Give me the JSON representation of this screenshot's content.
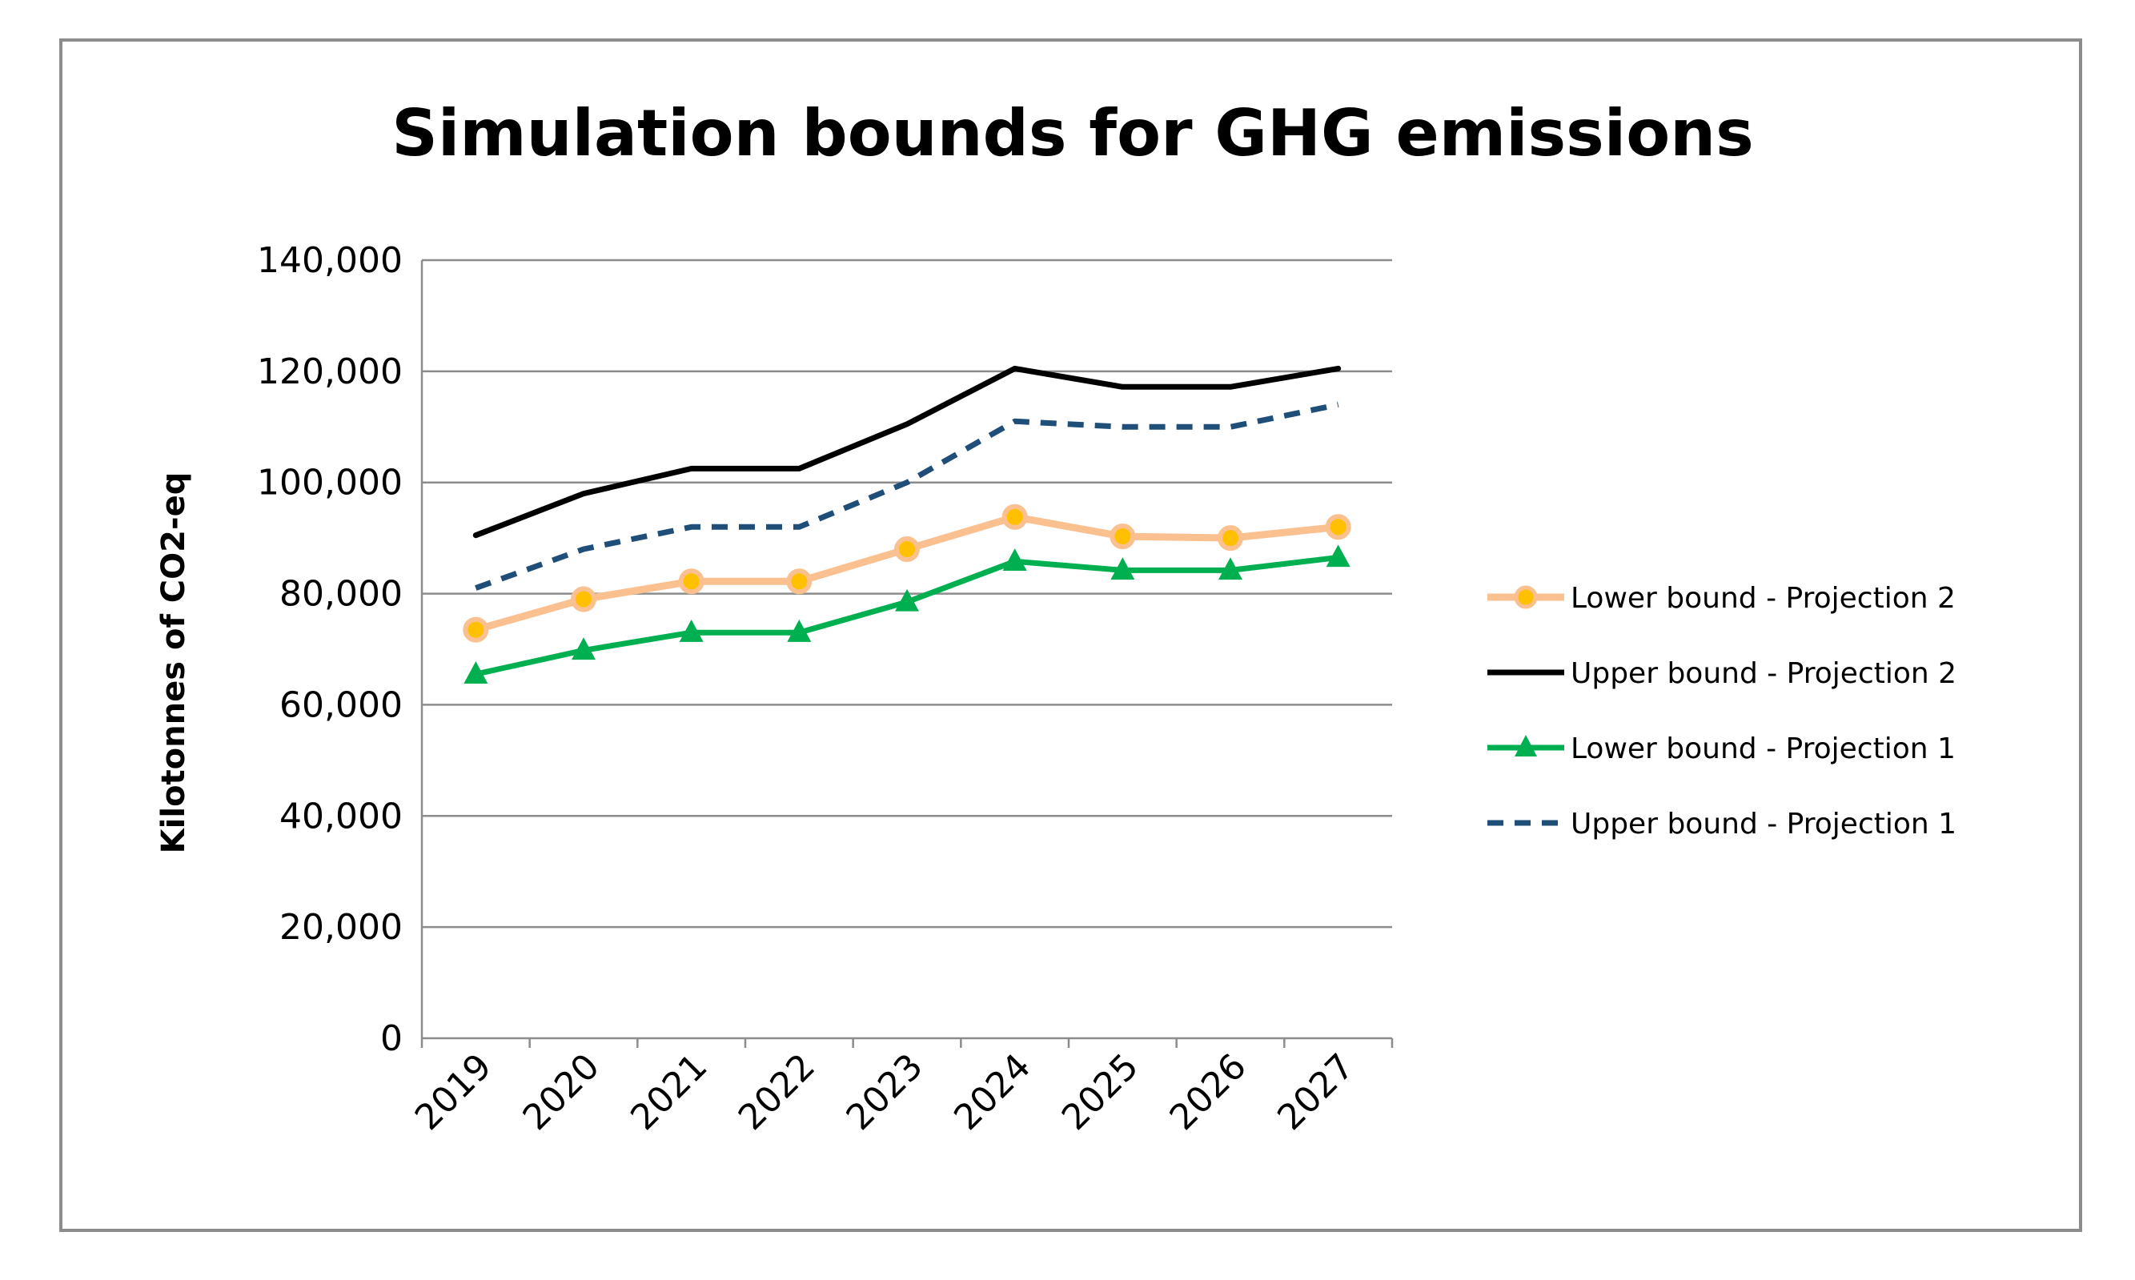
{
  "chart_data": {
    "type": "line",
    "title": "Simulation bounds for GHG emissions",
    "xlabel": "",
    "ylabel": "Kilotonnes of CO2-eq",
    "ylim": [
      0,
      140000
    ],
    "yticks": [
      0,
      20000,
      40000,
      60000,
      80000,
      100000,
      120000,
      140000
    ],
    "ytick_labels": [
      "0",
      "20,000",
      "40,000",
      "60,000",
      "80,000",
      "100,000",
      "120,000",
      "140,000"
    ],
    "categories": [
      "2019",
      "2020",
      "2021",
      "2022",
      "2023",
      "2024",
      "2025",
      "2026",
      "2027"
    ],
    "grid": true,
    "legend_position": "right",
    "series": [
      {
        "name": "Lower bound - Projection 2",
        "values": [
          73500,
          79000,
          82200,
          82200,
          88000,
          93800,
          90300,
          90000,
          92000
        ],
        "color": "#fac090",
        "marker": "circle",
        "marker_color": "#ffc000",
        "dash": "solid"
      },
      {
        "name": "Upper bound - Projection 2",
        "values": [
          90500,
          98000,
          102500,
          102500,
          110500,
          120500,
          117200,
          117200,
          120500
        ],
        "color": "#000000",
        "marker": "none",
        "dash": "solid"
      },
      {
        "name": "Lower bound - Projection 1",
        "values": [
          65500,
          69800,
          73000,
          73000,
          78500,
          85800,
          84200,
          84200,
          86500
        ],
        "color": "#00b050",
        "marker": "triangle",
        "marker_color": "#00b050",
        "dash": "solid"
      },
      {
        "name": "Upper bound - Projection 1",
        "values": [
          81000,
          88000,
          92000,
          92000,
          100000,
          111000,
          110000,
          110000,
          114000
        ],
        "color": "#1f4e79",
        "marker": "none",
        "dash": "dashed"
      }
    ]
  }
}
